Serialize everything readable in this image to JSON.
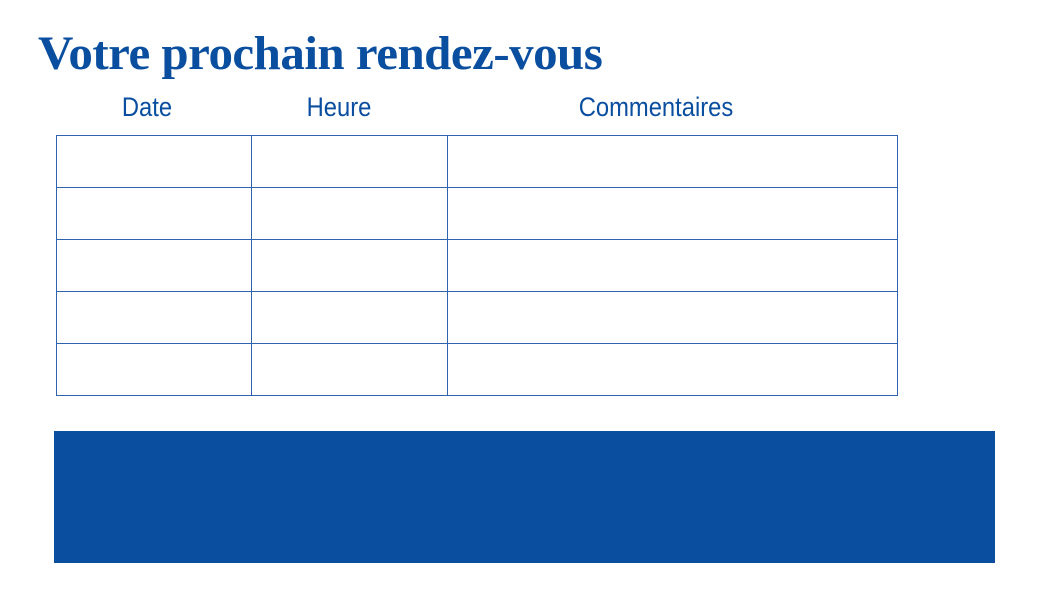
{
  "title": "Votre prochain rendez-vous",
  "table": {
    "headers": [
      "Date",
      "Heure",
      "Commentaires"
    ],
    "rows": [
      [
        "",
        "",
        ""
      ],
      [
        "",
        "",
        ""
      ],
      [
        "",
        "",
        ""
      ],
      [
        "",
        "",
        ""
      ],
      [
        "",
        "",
        ""
      ]
    ]
  },
  "colors": {
    "brand_blue": "#0a4ea0",
    "line_blue": "#2f63ad"
  }
}
